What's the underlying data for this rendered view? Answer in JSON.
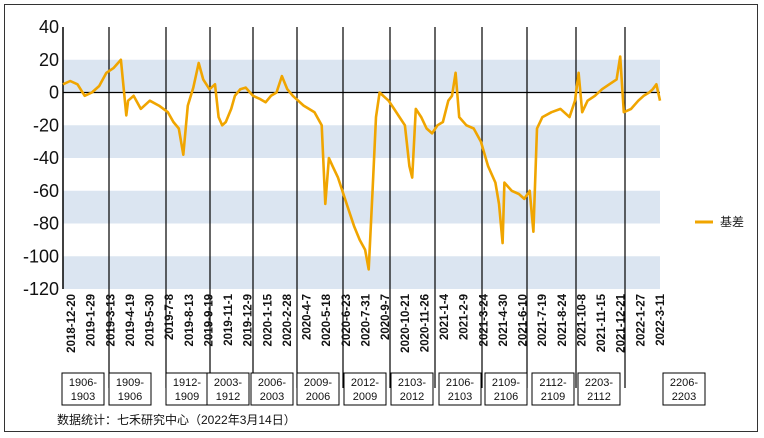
{
  "chart_data": {
    "type": "line",
    "title": "",
    "xlabel": "",
    "ylabel": "",
    "ylim": [
      -120,
      40
    ],
    "yticks": [
      40,
      20,
      0,
      -20,
      -40,
      -60,
      -80,
      -100,
      -120
    ],
    "grid": "horizontal-bands",
    "legend_position": "right",
    "series": [
      {
        "name": "基差",
        "color": "#f0a500",
        "points": [
          [
            0,
            5
          ],
          [
            8,
            7
          ],
          [
            16,
            5
          ],
          [
            24,
            -2
          ],
          [
            32,
            0
          ],
          [
            40,
            4
          ],
          [
            48,
            12
          ],
          [
            56,
            15
          ],
          [
            64,
            20
          ],
          [
            70,
            -14
          ],
          [
            72,
            -5
          ],
          [
            78,
            -2
          ],
          [
            86,
            -10
          ],
          [
            96,
            -5
          ],
          [
            106,
            -8
          ],
          [
            116,
            -12
          ],
          [
            122,
            -18
          ],
          [
            128,
            -22
          ],
          [
            133,
            -38
          ],
          [
            138,
            -8
          ],
          [
            144,
            3
          ],
          [
            150,
            18
          ],
          [
            155,
            8
          ],
          [
            162,
            2
          ],
          [
            168,
            5
          ],
          [
            172,
            -15
          ],
          [
            176,
            -20
          ],
          [
            180,
            -18
          ],
          [
            186,
            -10
          ],
          [
            190,
            -2
          ],
          [
            196,
            2
          ],
          [
            202,
            3
          ],
          [
            210,
            -2
          ],
          [
            218,
            -4
          ],
          [
            224,
            -6
          ],
          [
            230,
            -2
          ],
          [
            236,
            0
          ],
          [
            242,
            10
          ],
          [
            248,
            2
          ],
          [
            254,
            -2
          ],
          [
            260,
            -5
          ],
          [
            266,
            -8
          ],
          [
            272,
            -10
          ],
          [
            278,
            -12
          ],
          [
            286,
            -20
          ],
          [
            290,
            -68
          ],
          [
            294,
            -40
          ],
          [
            298,
            -45
          ],
          [
            304,
            -52
          ],
          [
            310,
            -62
          ],
          [
            316,
            -72
          ],
          [
            322,
            -82
          ],
          [
            328,
            -90
          ],
          [
            334,
            -96
          ],
          [
            338,
            -108
          ],
          [
            342,
            -62
          ],
          [
            346,
            -15
          ],
          [
            350,
            0
          ],
          [
            354,
            -2
          ],
          [
            360,
            -5
          ],
          [
            366,
            -10
          ],
          [
            372,
            -15
          ],
          [
            378,
            -20
          ],
          [
            383,
            -45
          ],
          [
            386,
            -52
          ],
          [
            390,
            -10
          ],
          [
            396,
            -15
          ],
          [
            402,
            -22
          ],
          [
            408,
            -25
          ],
          [
            414,
            -20
          ],
          [
            420,
            -18
          ],
          [
            426,
            -5
          ],
          [
            430,
            -2
          ],
          [
            434,
            12
          ],
          [
            438,
            -15
          ],
          [
            446,
            -20
          ],
          [
            454,
            -22
          ],
          [
            462,
            -30
          ],
          [
            470,
            -45
          ],
          [
            478,
            -55
          ],
          [
            482,
            -68
          ],
          [
            486,
            -92
          ],
          [
            488,
            -55
          ],
          [
            496,
            -60
          ],
          [
            504,
            -62
          ],
          [
            510,
            -65
          ],
          [
            516,
            -60
          ],
          [
            520,
            -85
          ],
          [
            524,
            -22
          ],
          [
            530,
            -15
          ],
          [
            540,
            -12
          ],
          [
            550,
            -10
          ],
          [
            560,
            -15
          ],
          [
            566,
            -5
          ],
          [
            570,
            12
          ],
          [
            574,
            -12
          ],
          [
            580,
            -5
          ],
          [
            588,
            -2
          ],
          [
            596,
            2
          ],
          [
            604,
            5
          ],
          [
            612,
            8
          ],
          [
            616,
            22
          ],
          [
            620,
            -12
          ],
          [
            628,
            -10
          ],
          [
            636,
            -5
          ],
          [
            642,
            -2
          ],
          [
            648,
            0
          ],
          [
            652,
            2
          ],
          [
            656,
            5
          ],
          [
            660,
            -5
          ]
        ]
      }
    ],
    "x_ticks": [
      "2018-12-20",
      "2019-1-29",
      "2019-3-13",
      "2019-4-19",
      "2019-5-30",
      "2019-7-8",
      "2019-8-13",
      "2019-9-19",
      "2019-11-1",
      "2019-12-9",
      "2020-1-15",
      "2020-2-28",
      "2020-4-7",
      "2020-5-18",
      "2020-6-23",
      "2020-7-31",
      "2020-9-7",
      "2020-10-21",
      "2020-11-26",
      "2021-1-4",
      "2021-2-9",
      "2021-3-24",
      "2021-4-30",
      "2021-6-10",
      "2021-7-19",
      "2021-8-24",
      "2021-10-8",
      "2021-11-15",
      "2021-12-21",
      "2022-1-27",
      "2022-3-11"
    ],
    "contract_periods": [
      {
        "line1": "1906-",
        "line2": "1903"
      },
      {
        "line1": "1909-",
        "line2": "1906"
      },
      {
        "line1": "1912-",
        "line2": "1909"
      },
      {
        "line1": "2003-",
        "line2": "1912"
      },
      {
        "line1": "2006-",
        "line2": "2003"
      },
      {
        "line1": "2009-",
        "line2": "2006"
      },
      {
        "line1": "2012-",
        "line2": "2009"
      },
      {
        "line1": "2103-",
        "line2": "2012"
      },
      {
        "line1": "2106-",
        "line2": "2103"
      },
      {
        "line1": "2109-",
        "line2": "2106"
      },
      {
        "line1": "2112-",
        "line2": "2109"
      },
      {
        "line1": "2203-",
        "line2": "2112"
      },
      {
        "line1": "2206-",
        "line2": "2203"
      }
    ],
    "source_note": "数据统计：七禾研究中心（2022年3月14日）"
  }
}
